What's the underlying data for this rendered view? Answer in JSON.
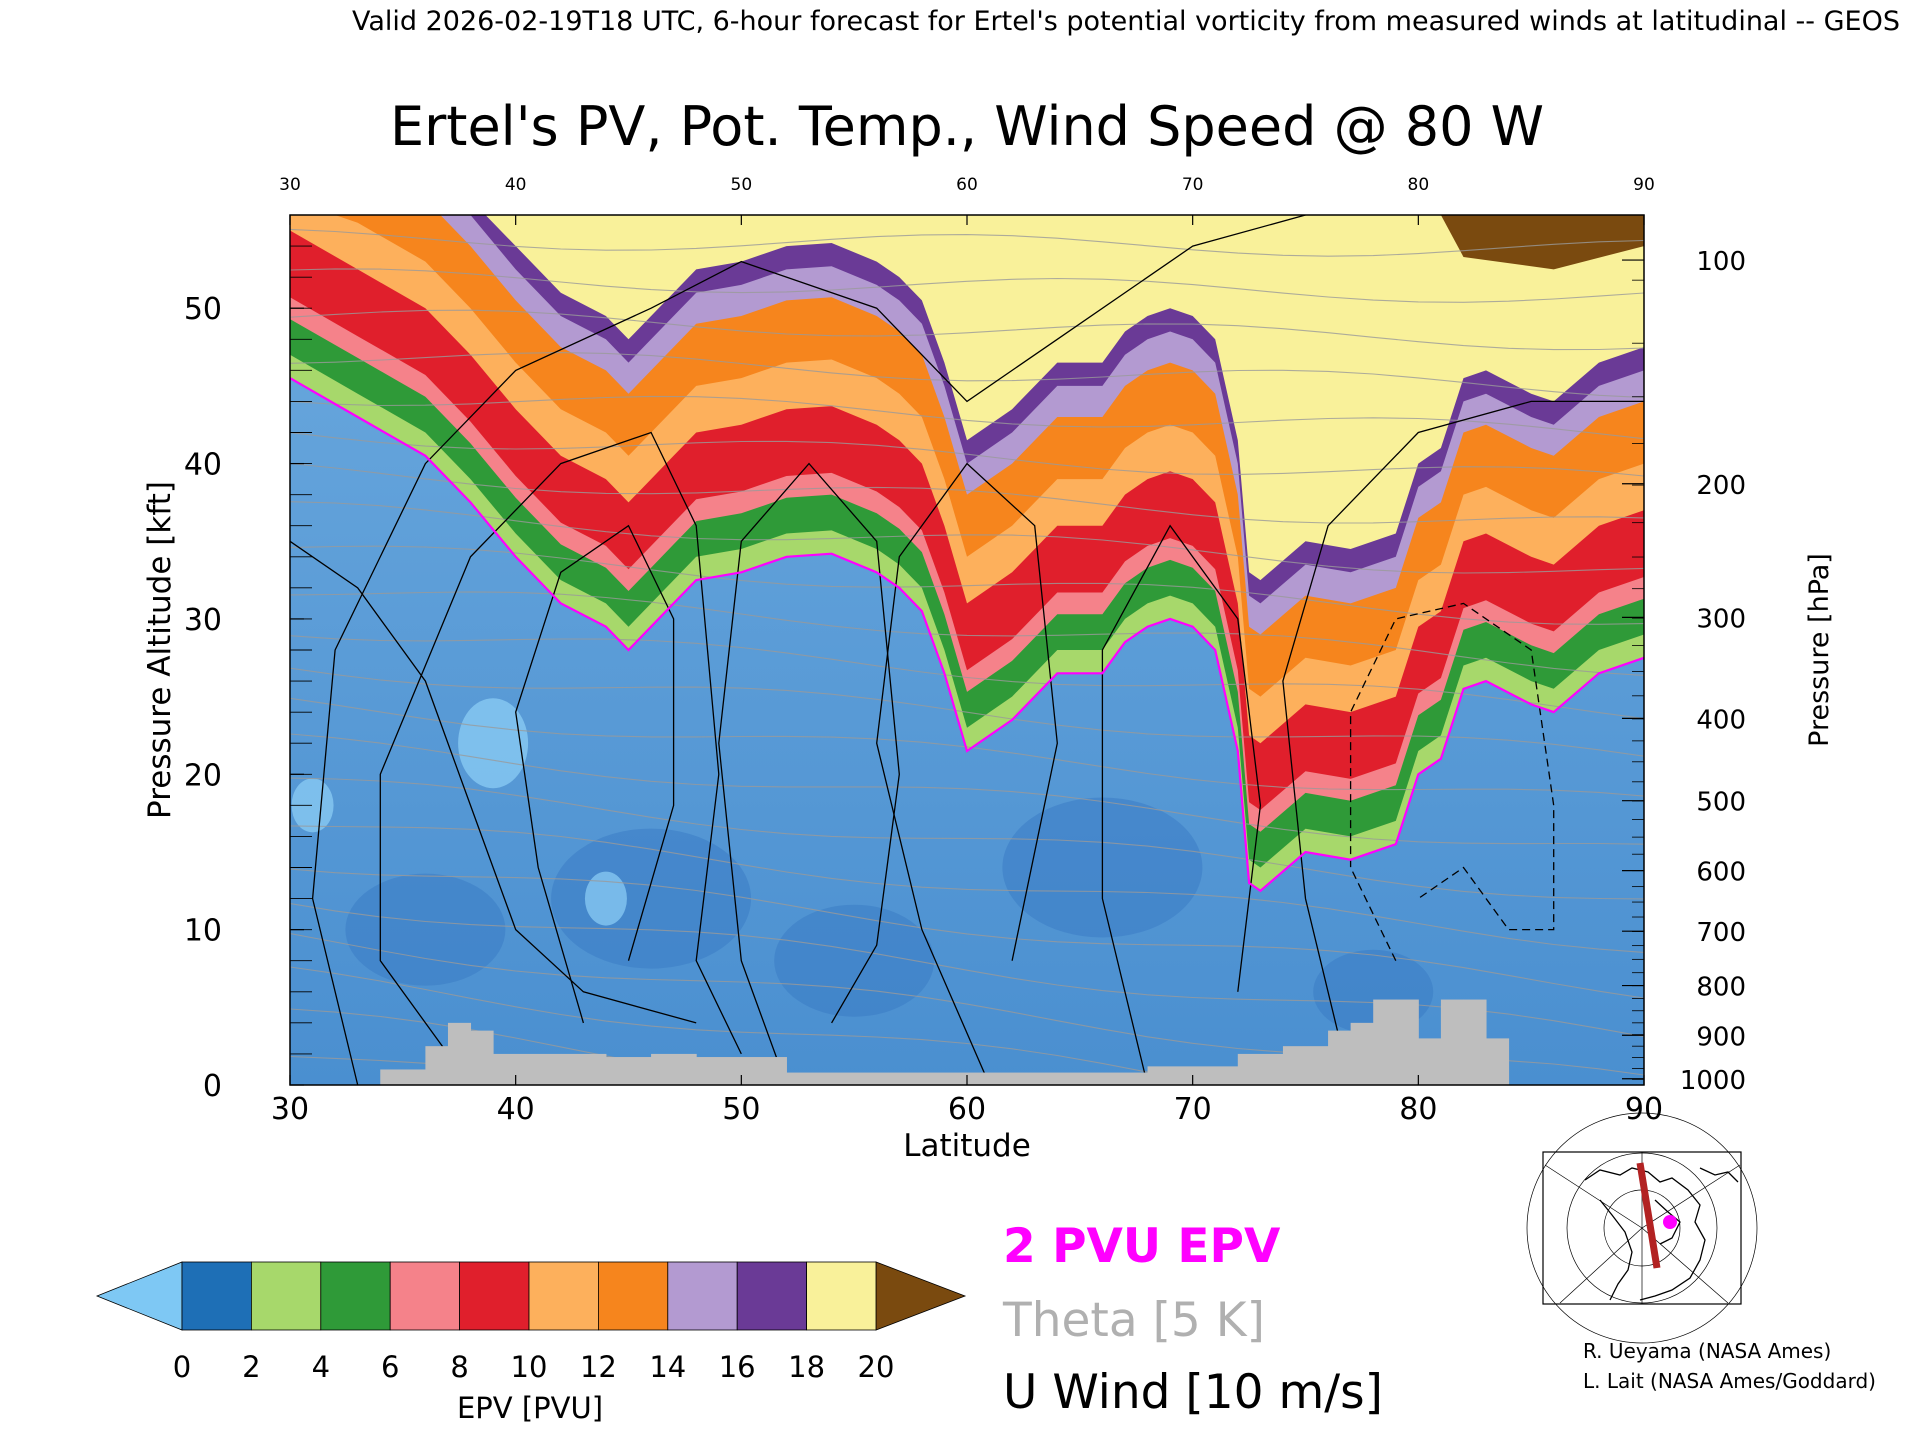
{
  "header": "Valid 2026-02-19T18 UTC, 6-hour forecast for Ertel's potential vorticity from measured winds at latitudinal -- GEOS",
  "chart_data": {
    "type": "heatmap",
    "title": "Ertel's PV, Pot. Temp., Wind Speed @ 80 W",
    "xlabel": "Latitude",
    "ylabel": "Pressure Altitude [kft]",
    "y2label": "Pressure [hPa]",
    "xlim": [
      30,
      90
    ],
    "ylim": [
      0,
      56
    ],
    "x_ticks": [
      "30",
      "40",
      "50",
      "60",
      "70",
      "80",
      "90"
    ],
    "y_ticks": [
      "0",
      "10",
      "20",
      "30",
      "40",
      "50"
    ],
    "pressure_ticks": [
      {
        "label": "100",
        "kft": 53.1
      },
      {
        "label": "200",
        "kft": 38.7
      },
      {
        "label": "300",
        "kft": 30.1
      },
      {
        "label": "400",
        "kft": 23.6
      },
      {
        "label": "500",
        "kft": 18.3
      },
      {
        "label": "600",
        "kft": 13.8
      },
      {
        "label": "700",
        "kft": 9.9
      },
      {
        "label": "800",
        "kft": 6.4
      },
      {
        "label": "900",
        "kft": 3.2
      },
      {
        "label": "1000",
        "kft": 0.4
      }
    ],
    "colorbar": {
      "label": "EPV [PVU]",
      "ticks": [
        "0",
        "2",
        "4",
        "6",
        "8",
        "10",
        "12",
        "14",
        "16",
        "18",
        "20"
      ],
      "colors": [
        "#1e6fb6",
        "#a7d86b",
        "#2f9a38",
        "#f5828a",
        "#e01f2c",
        "#fdb05c",
        "#f6851d",
        "#b39ad1",
        "#6a3a96",
        "#f9f19a"
      ],
      "under_color": "#7ec8f4",
      "over_color": "#7a4a0f"
    },
    "tropopause_pvu2_kft": [
      [
        30,
        45.5
      ],
      [
        33,
        43.0
      ],
      [
        36,
        40.5
      ],
      [
        38,
        37.5
      ],
      [
        40,
        34.0
      ],
      [
        42,
        31.0
      ],
      [
        44,
        29.5
      ],
      [
        45,
        28.0
      ],
      [
        46,
        29.5
      ],
      [
        47,
        31.0
      ],
      [
        48,
        32.5
      ],
      [
        50,
        33.0
      ],
      [
        52,
        34.0
      ],
      [
        54,
        34.2
      ],
      [
        56,
        33.0
      ],
      [
        57,
        32.0
      ],
      [
        58,
        30.5
      ],
      [
        59,
        26.5
      ],
      [
        60,
        21.5
      ],
      [
        62,
        23.5
      ],
      [
        64,
        26.5
      ],
      [
        66,
        26.5
      ],
      [
        67,
        28.5
      ],
      [
        68,
        29.5
      ],
      [
        69,
        30.0
      ],
      [
        70,
        29.5
      ],
      [
        71,
        28.0
      ],
      [
        72,
        21.5
      ],
      [
        72.5,
        13.0
      ],
      [
        73,
        12.5
      ],
      [
        75,
        15.0
      ],
      [
        77,
        14.5
      ],
      [
        79,
        15.5
      ],
      [
        80,
        20.0
      ],
      [
        81,
        21.0
      ],
      [
        82,
        25.5
      ],
      [
        83,
        26.0
      ],
      [
        85,
        24.5
      ],
      [
        86,
        24.0
      ],
      [
        88,
        26.5
      ],
      [
        90,
        27.5
      ]
    ],
    "theta_contour_levels_K": [
      250,
      300,
      370,
      380,
      390,
      420
    ],
    "u_wind_contour_levels_ms": [
      -10,
      0,
      10,
      30,
      50
    ],
    "legend": [
      "2 PVU EPV",
      "Theta [5 K]",
      "U Wind [10 m/s]"
    ],
    "legend_colors": [
      "#ff00ff",
      "#b0b0b0",
      "#000000"
    ],
    "terrain_color": "#bebebe",
    "inset_map": {
      "section_color": "#b22222",
      "marker_color": "#ff00ff"
    }
  },
  "credits": [
    "R. Ueyama (NASA Ames)",
    "L. Lait (NASA Ames/Goddard)"
  ]
}
